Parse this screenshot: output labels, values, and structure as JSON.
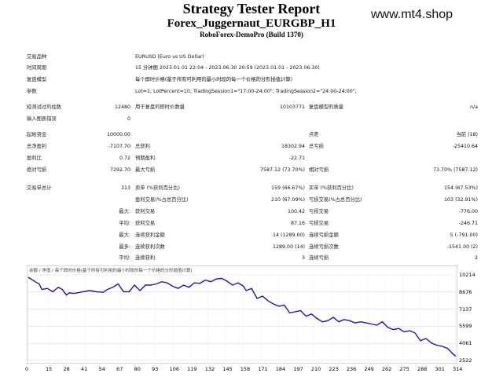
{
  "header": {
    "title": "Strategy Tester Report",
    "subtitle": "Forex_Juggernaut_EURGBP_H1",
    "server": "RoboForex-DemoPro (Build 1370)",
    "site": "www.mt4.shop"
  },
  "info": [
    {
      "label": "交易品种",
      "value": "EURUSD (Euro vs US Dollar)"
    },
    {
      "label": "时间周期",
      "value": "15 分钟图 2023.01.01 22:04 - 2023.06.30 20:59 (2023.01.01 - 2023.06.30)"
    },
    {
      "label": "复盘模型",
      "value": "每个即时价格(基于所有可利用的最小时段的每一个价格的分形插值计算)"
    },
    {
      "label": "参数",
      "value": "Lot=1; LotPercent=10; TradingSession1=\"17:00-24:00\"; TradingSession2=\"24:00-24:00\";"
    }
  ],
  "bars": {
    "label": "经测试过的柱数",
    "value": "12480",
    "ticks_label": "用于复盘的即时价数量",
    "ticks_value": "10103771",
    "quality_label": "复盘模型的质量",
    "quality_value": "n/a"
  },
  "mismatch": {
    "label": "输入图表错误",
    "value": "0"
  },
  "stats": {
    "deposit_label": "起始资金",
    "deposit": "10000.00",
    "spread_label": "点差",
    "spread": "当前 (18)",
    "net_label": "总净盈利",
    "net": "-7107.70",
    "gross_profit_label": "总获利",
    "gross_profit": "18302.94",
    "gross_loss_label": "总亏损",
    "gross_loss": "-25410.64",
    "pf_label": "盈利比",
    "pf": "0.72",
    "payoff_label": "预期盈利",
    "payoff": "-22.71",
    "abs_dd_label": "绝对亏损",
    "abs_dd": "7292.70",
    "max_dd_label": "最大亏损",
    "max_dd": "7587.12 (73.70%)",
    "rel_dd_label": "相对亏损",
    "rel_dd": "73.70% (7587.12)"
  },
  "trades": {
    "total_label": "交易单总计",
    "total": "313",
    "short_label": "卖单 (%获利百分比)",
    "short": "159 (66.67%)",
    "long_label": "买单 (%获利百分比)",
    "long": "154 (67.53%)",
    "profit_trades_label": "盈利交易(%占总百分比)",
    "profit_trades": "210 (67.09%)",
    "loss_trades_label": "亏损交易(%占总百分比)",
    "loss_trades": "103 (32.91%)",
    "largest_label": "最大:",
    "largest_profit_label": "获利交易",
    "largest_profit": "100.42",
    "largest_loss_label": "亏损交易",
    "largest_loss": "-776.00",
    "average_label": "平均:",
    "avg_profit_label": "获利交易",
    "avg_profit": "87.16",
    "avg_loss_label": "亏损交易",
    "avg_loss": "-246.71",
    "max_label": "最大:",
    "max_wins_label": "连续获利金额",
    "max_wins": "14 (1289.00)",
    "max_losses_label": "连续亏损金额",
    "max_losses": "5 (-791.00)",
    "maximal_label": "最多:",
    "max_profit_label": "连续获利次数",
    "max_profit": "1289.00 (14)",
    "max_loss_label": "连续亏损次数",
    "max_loss": "-1541.00 (2)",
    "avg2_label": "平均:",
    "avg_wins_label": "连续获利",
    "avg_wins": "3",
    "avg_losses_label": "连续亏损",
    "avg_losses": "2"
  },
  "chart_data": {
    "type": "line",
    "legend": "余额 / 净值 / 每个即时价格(基于所有可利用的最小时段的每一个价格的分形插值计算)",
    "x_ticks": [
      "0",
      "15",
      "28",
      "41",
      "54",
      "67",
      "80",
      "93",
      "106",
      "119",
      "132",
      "145",
      "158",
      "171",
      "184",
      "197",
      "210",
      "223",
      "236",
      "249",
      "262",
      "275",
      "288",
      "301",
      "314"
    ],
    "y_ticks": [
      "10214",
      "8676",
      "7137",
      "5599",
      "4061",
      "2522"
    ],
    "xlim": [
      0,
      314
    ],
    "ylim": [
      2522,
      10214
    ],
    "x": [
      0,
      5,
      8,
      10,
      14,
      18,
      22,
      25,
      28,
      30,
      33,
      36,
      40,
      45,
      50,
      55,
      58,
      62,
      66,
      70,
      74,
      78,
      82,
      86,
      90,
      94,
      98,
      102,
      106,
      110,
      114,
      118,
      122,
      126,
      130,
      134,
      138,
      142,
      146,
      150,
      154,
      158,
      160,
      164,
      168,
      172,
      176,
      180,
      184,
      188,
      192,
      196,
      200,
      204,
      208,
      212,
      216,
      220,
      224,
      228,
      232,
      236,
      240,
      244,
      248,
      252,
      256,
      260,
      264,
      268,
      272,
      276,
      280,
      284,
      288,
      292,
      296,
      300,
      304,
      308,
      312,
      314
    ],
    "y": [
      10000,
      9600,
      9400,
      8900,
      9000,
      8700,
      9100,
      8900,
      8400,
      8600,
      8550,
      8600,
      8700,
      8800,
      8700,
      8650,
      8900,
      9100,
      9400,
      8700,
      8700,
      9300,
      8800,
      9300,
      9300,
      9400,
      9600,
      9500,
      9200,
      9000,
      9300,
      9100,
      9500,
      9450,
      9750,
      9600,
      9850,
      9900,
      9650,
      9300,
      9500,
      9200,
      8800,
      9000,
      8100,
      8300,
      7900,
      7600,
      7400,
      7500,
      6800,
      6900,
      7000,
      6500,
      6700,
      6300,
      6000,
      6100,
      6400,
      6000,
      6200,
      6100,
      5900,
      6000,
      5900,
      5800,
      5700,
      6000,
      5500,
      5300,
      5400,
      5100,
      5200,
      5000,
      4300,
      4500,
      4100,
      3900,
      3800,
      3600,
      3100,
      2900
    ]
  }
}
